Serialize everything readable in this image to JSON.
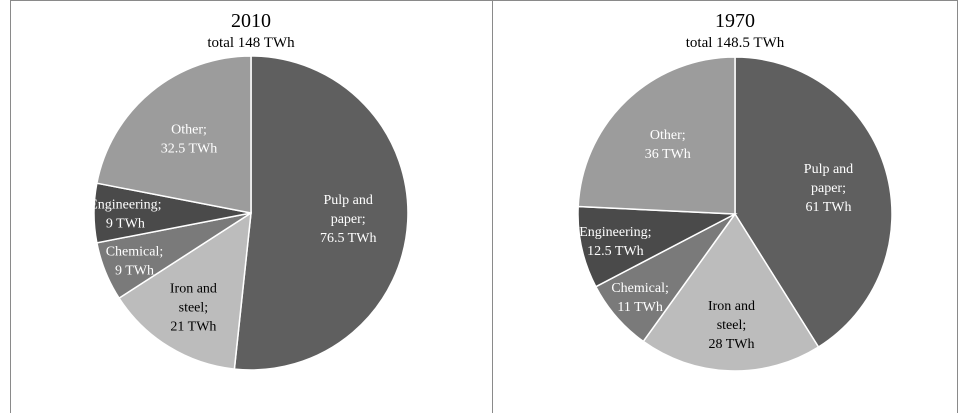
{
  "chart_data": [
    {
      "type": "pie",
      "title": "2010",
      "subtitle": "total 148 TWh",
      "slices": [
        {
          "label": "Pulp and paper",
          "value": 76.5,
          "text": [
            "Pulp and",
            "paper;",
            "76.5 TWh"
          ],
          "color": "#5f5f5f",
          "text_color": "#ffffff"
        },
        {
          "label": "Iron and steel",
          "value": 21,
          "text": [
            "Iron and",
            "steel;",
            "21 TWh"
          ],
          "color": "#bcbcbc",
          "text_color": "#000000"
        },
        {
          "label": "Chemical",
          "value": 9,
          "text": [
            "Chemical;",
            "9 TWh"
          ],
          "color": "#7a7a7a",
          "text_color": "#ffffff"
        },
        {
          "label": "Engineering",
          "value": 9,
          "text": [
            "Engineering;",
            "9 TWh"
          ],
          "color": "#4a4a4a",
          "text_color": "#ffffff"
        },
        {
          "label": "Other",
          "value": 32.5,
          "text": [
            "Other;",
            "32.5 TWh"
          ],
          "color": "#9c9c9c",
          "text_color": "#ffffff"
        }
      ]
    },
    {
      "type": "pie",
      "title": "1970",
      "subtitle": "total 148.5 TWh",
      "slices": [
        {
          "label": "Pulp and paper",
          "value": 61,
          "text": [
            "Pulp and",
            "paper;",
            "61 TWh"
          ],
          "color": "#5f5f5f",
          "text_color": "#ffffff"
        },
        {
          "label": "Iron and steel",
          "value": 28,
          "text": [
            "Iron and",
            "steel;",
            "28 TWh"
          ],
          "color": "#bcbcbc",
          "text_color": "#000000"
        },
        {
          "label": "Chemical",
          "value": 11,
          "text": [
            "Chemical;",
            "11 TWh"
          ],
          "color": "#7a7a7a",
          "text_color": "#ffffff"
        },
        {
          "label": "Engineering",
          "value": 12.5,
          "text": [
            "Engineering;",
            "12.5 TWh"
          ],
          "color": "#4a4a4a",
          "text_color": "#ffffff"
        },
        {
          "label": "Other",
          "value": 36,
          "text": [
            "Other;",
            "36 TWh"
          ],
          "color": "#9c9c9c",
          "text_color": "#ffffff"
        }
      ]
    }
  ]
}
